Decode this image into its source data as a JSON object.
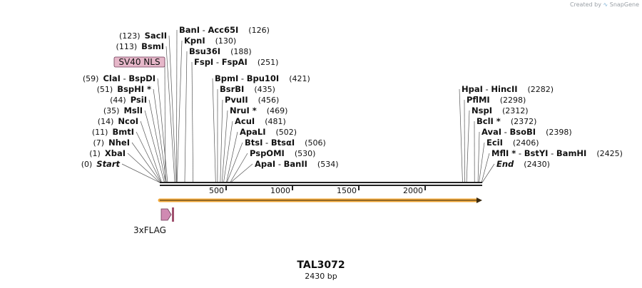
{
  "credit": {
    "prefix": "Created by",
    "brand": "SnapGene"
  },
  "plasmid": {
    "name": "TAL3072",
    "length_label": "2430 bp",
    "length_bp": 2430
  },
  "scale_ticks": [
    {
      "bp": 500,
      "label": "500"
    },
    {
      "bp": 1000,
      "label": "1000"
    },
    {
      "bp": 1500,
      "label": "1500"
    },
    {
      "bp": 2000,
      "label": "2000"
    }
  ],
  "sites_left": [
    {
      "pos": 0,
      "parts": [
        [
          "Start",
          true,
          true
        ]
      ],
      "num": "(0)"
    },
    {
      "pos": 1,
      "parts": [
        [
          "XbaI",
          true,
          false
        ]
      ],
      "num": "(1)"
    },
    {
      "pos": 7,
      "parts": [
        [
          "NheI",
          true,
          false
        ]
      ],
      "num": "(7)"
    },
    {
      "pos": 11,
      "parts": [
        [
          "BmtI",
          true,
          false
        ]
      ],
      "num": "(11)"
    },
    {
      "pos": 14,
      "parts": [
        [
          "NcoI",
          true,
          false
        ]
      ],
      "num": "(14)"
    },
    {
      "pos": 35,
      "parts": [
        [
          "MslI",
          true,
          false
        ]
      ],
      "num": "(35)"
    },
    {
      "pos": 44,
      "parts": [
        [
          "PsiI",
          true,
          false
        ]
      ],
      "num": "(44)"
    },
    {
      "pos": 51,
      "parts": [
        [
          "BspHI *",
          true,
          false
        ]
      ],
      "num": "(51)"
    },
    {
      "pos": 59,
      "parts": [
        [
          "ClaI",
          true,
          false
        ],
        [
          "  -  ",
          false,
          false
        ],
        [
          "BspDI",
          true,
          false
        ]
      ],
      "num": "(59)"
    },
    {
      "pos": 113,
      "parts": [
        [
          "BsmI",
          true,
          false
        ]
      ],
      "num": "(113)"
    },
    {
      "pos": 123,
      "parts": [
        [
          "SacII",
          true,
          false
        ]
      ],
      "num": "(123)"
    }
  ],
  "sites_right": [
    {
      "pos": 126,
      "parts": [
        [
          "BanI",
          true,
          false
        ],
        [
          "  -  ",
          false,
          false
        ],
        [
          "Acc65I",
          true,
          false
        ]
      ],
      "num": "(126)"
    },
    {
      "pos": 130,
      "parts": [
        [
          "KpnI",
          true,
          false
        ]
      ],
      "num": "(130)"
    },
    {
      "pos": 188,
      "parts": [
        [
          "Bsu36I",
          true,
          false
        ]
      ],
      "num": "(188)"
    },
    {
      "pos": 251,
      "parts": [
        [
          "FspI",
          true,
          false
        ],
        [
          "  -  ",
          false,
          false
        ],
        [
          "FspAI",
          true,
          false
        ]
      ],
      "num": "(251)"
    },
    {
      "pos": 421,
      "parts": [
        [
          "BpmI",
          true,
          false
        ],
        [
          "  -  ",
          false,
          false
        ],
        [
          "Bpu10I",
          true,
          false
        ]
      ],
      "num": "(421)"
    },
    {
      "pos": 435,
      "parts": [
        [
          "BsrBI",
          true,
          false
        ]
      ],
      "num": "(435)"
    },
    {
      "pos": 456,
      "parts": [
        [
          "PvuII",
          true,
          false
        ]
      ],
      "num": "(456)"
    },
    {
      "pos": 469,
      "parts": [
        [
          "NruI *",
          true,
          false
        ]
      ],
      "num": "(469)"
    },
    {
      "pos": 481,
      "parts": [
        [
          "AcuI",
          true,
          false
        ]
      ],
      "num": "(481)"
    },
    {
      "pos": 502,
      "parts": [
        [
          "ApaLI",
          true,
          false
        ]
      ],
      "num": "(502)"
    },
    {
      "pos": 506,
      "parts": [
        [
          "BtsI",
          true,
          false
        ],
        [
          "  -  ",
          false,
          false
        ],
        [
          "BtsαI",
          true,
          false
        ]
      ],
      "num": "(506)"
    },
    {
      "pos": 530,
      "parts": [
        [
          "PspOMI",
          true,
          false
        ]
      ],
      "num": "(530)"
    },
    {
      "pos": 534,
      "parts": [
        [
          "ApaI",
          true,
          false
        ],
        [
          "  -  ",
          false,
          false
        ],
        [
          "BanII",
          true,
          false
        ]
      ],
      "num": "(534)"
    },
    {
      "pos": 2282,
      "parts": [
        [
          "HpaI",
          true,
          false
        ],
        [
          "  -  ",
          false,
          false
        ],
        [
          "HincII",
          true,
          false
        ]
      ],
      "num": "(2282)"
    },
    {
      "pos": 2298,
      "parts": [
        [
          "PflMI",
          true,
          false
        ]
      ],
      "num": "(2298)"
    },
    {
      "pos": 2312,
      "parts": [
        [
          "NspI",
          true,
          false
        ]
      ],
      "num": "(2312)"
    },
    {
      "pos": 2372,
      "parts": [
        [
          "BclI *",
          true,
          false
        ]
      ],
      "num": "(2372)"
    },
    {
      "pos": 2398,
      "parts": [
        [
          "AvaI",
          true,
          false
        ],
        [
          "  -  ",
          false,
          false
        ],
        [
          "BsoBI",
          true,
          false
        ]
      ],
      "num": "(2398)"
    },
    {
      "pos": 2406,
      "parts": [
        [
          "EciI",
          true,
          false
        ]
      ],
      "num": "(2406)"
    },
    {
      "pos": 2425,
      "parts": [
        [
          "MflI *",
          true,
          false
        ],
        [
          "  -  ",
          false,
          false
        ],
        [
          "BstYI",
          true,
          false
        ],
        [
          "  -  ",
          false,
          false
        ],
        [
          "BamHI",
          true,
          false
        ]
      ],
      "num": "(2425)"
    },
    {
      "pos": 2430,
      "parts": [
        [
          "End",
          true,
          true
        ]
      ],
      "num": "(2430)"
    }
  ],
  "features": {
    "sv40": {
      "label": "SV40 NLS",
      "color": "#e6b7c9",
      "start": 41,
      "end": 62
    },
    "flag": {
      "label": "3xFLAG",
      "color": "#d08ab2",
      "start": 1,
      "end": 66
    },
    "orf": {
      "start": 0,
      "end": 2430,
      "color": "#f2a93b"
    }
  },
  "colors": {
    "backbone": "#222222",
    "text": "#111111"
  }
}
